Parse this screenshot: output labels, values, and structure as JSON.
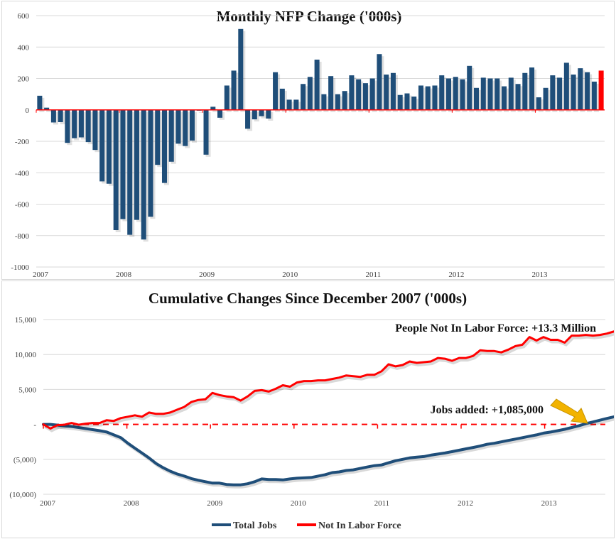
{
  "chart_data": [
    {
      "type": "bar",
      "title": "Monthly NFP Change ('000s)",
      "xlabel": "",
      "ylabel": "",
      "ylim": [
        -1000,
        600
      ],
      "yticks": [
        600,
        400,
        200,
        0,
        -200,
        -400,
        -600,
        -800,
        -1000
      ],
      "ytick_labels": [
        "600",
        "400",
        "200",
        "0",
        "-200",
        "-400",
        "-600",
        "-800",
        "-1000"
      ],
      "xtick_labels": [
        "2007",
        "2008",
        "2009",
        "2010",
        "2011",
        "2012",
        "2013"
      ],
      "grid": true,
      "start": "2007-01",
      "values": [
        90,
        14,
        -80,
        -78,
        -210,
        -180,
        -175,
        -205,
        -255,
        -455,
        -470,
        -765,
        -695,
        -795,
        -700,
        -825,
        -680,
        -350,
        -465,
        -330,
        -215,
        -230,
        -195,
        -5,
        -285,
        20,
        -50,
        155,
        250,
        515,
        -120,
        -60,
        -40,
        -55,
        240,
        135,
        65,
        65,
        165,
        210,
        320,
        100,
        215,
        100,
        120,
        220,
        195,
        170,
        200,
        355,
        225,
        235,
        95,
        105,
        85,
        155,
        150,
        155,
        220,
        200,
        210,
        195,
        280,
        140,
        205,
        200,
        200,
        150,
        205,
        165,
        235,
        270,
        80,
        140,
        220,
        205,
        300,
        225,
        265,
        240,
        180,
        250
      ],
      "bar_color": "#1f4e79",
      "highlight_last_color": "#ff0000",
      "zero_line_color": "#ff0000"
    },
    {
      "type": "line",
      "title": "Cumulative Changes Since December 2007 ('000s)",
      "xlabel": "",
      "ylabel": "",
      "ylim": [
        -10000,
        15000
      ],
      "yticks": [
        15000,
        10000,
        5000,
        0,
        -5000,
        -10000
      ],
      "ytick_labels": [
        "15,000",
        "10,000",
        "5,000",
        "-",
        "(5,000)",
        "(10,000)"
      ],
      "xtick_labels": [
        "2007",
        "2008",
        "2009",
        "2010",
        "2011",
        "2012",
        "2013"
      ],
      "grid": true,
      "legend_position": "bottom",
      "series": [
        {
          "name": "Total Jobs",
          "color": "#1f4e79",
          "x_start": 2007.0,
          "x_end": 2013.83,
          "values": [
            0,
            0,
            -100,
            -200,
            -300,
            -450,
            -600,
            -750,
            -900,
            -1100,
            -1500,
            -1900,
            -2700,
            -3400,
            -4100,
            -4800,
            -5600,
            -6200,
            -6700,
            -7100,
            -7400,
            -7750,
            -8000,
            -8200,
            -8400,
            -8400,
            -8600,
            -8650,
            -8650,
            -8500,
            -8200,
            -7800,
            -7900,
            -7900,
            -7950,
            -7800,
            -7700,
            -7650,
            -7600,
            -7400,
            -7200,
            -6900,
            -6800,
            -6600,
            -6500,
            -6300,
            -6100,
            -5900,
            -5800,
            -5500,
            -5200,
            -5000,
            -4800,
            -4700,
            -4600,
            -4400,
            -4250,
            -4100,
            -3900,
            -3700,
            -3500,
            -3300,
            -3100,
            -2850,
            -2700,
            -2500,
            -2300,
            -2100,
            -1900,
            -1700,
            -1500,
            -1250,
            -1100,
            -900,
            -700,
            -450,
            -200,
            100,
            350,
            600,
            850,
            1085
          ],
          "end_label": "Jobs added: +1,085,000"
        },
        {
          "name": "Not In Labor Force",
          "color": "#ff0000",
          "x_start": 2007.0,
          "x_end": 2013.83,
          "values": [
            0,
            -600,
            -100,
            -50,
            200,
            -50,
            100,
            200,
            200,
            600,
            500,
            900,
            1100,
            1300,
            1100,
            1700,
            1500,
            1500,
            1700,
            2100,
            2500,
            3200,
            3500,
            3600,
            4500,
            4200,
            4000,
            3900,
            3400,
            4000,
            4800,
            4900,
            4700,
            5100,
            5600,
            5400,
            6000,
            6200,
            6200,
            6300,
            6300,
            6500,
            6700,
            7000,
            6900,
            6800,
            7100,
            7100,
            7600,
            8600,
            8300,
            8500,
            9000,
            8800,
            8900,
            9000,
            9500,
            9400,
            9100,
            9500,
            9500,
            9800,
            10600,
            10500,
            10500,
            10300,
            10700,
            11200,
            11400,
            12500,
            12000,
            12500,
            12100,
            12100,
            11700,
            12700,
            12700,
            12800,
            12700,
            12800,
            13000,
            13300
          ],
          "end_label": "People Not In Labor Force: +13.3 Million"
        }
      ],
      "reference_line": {
        "value": 0,
        "style": "dashed",
        "color": "#ff0000"
      },
      "arrow_color": "#f2b300"
    }
  ]
}
